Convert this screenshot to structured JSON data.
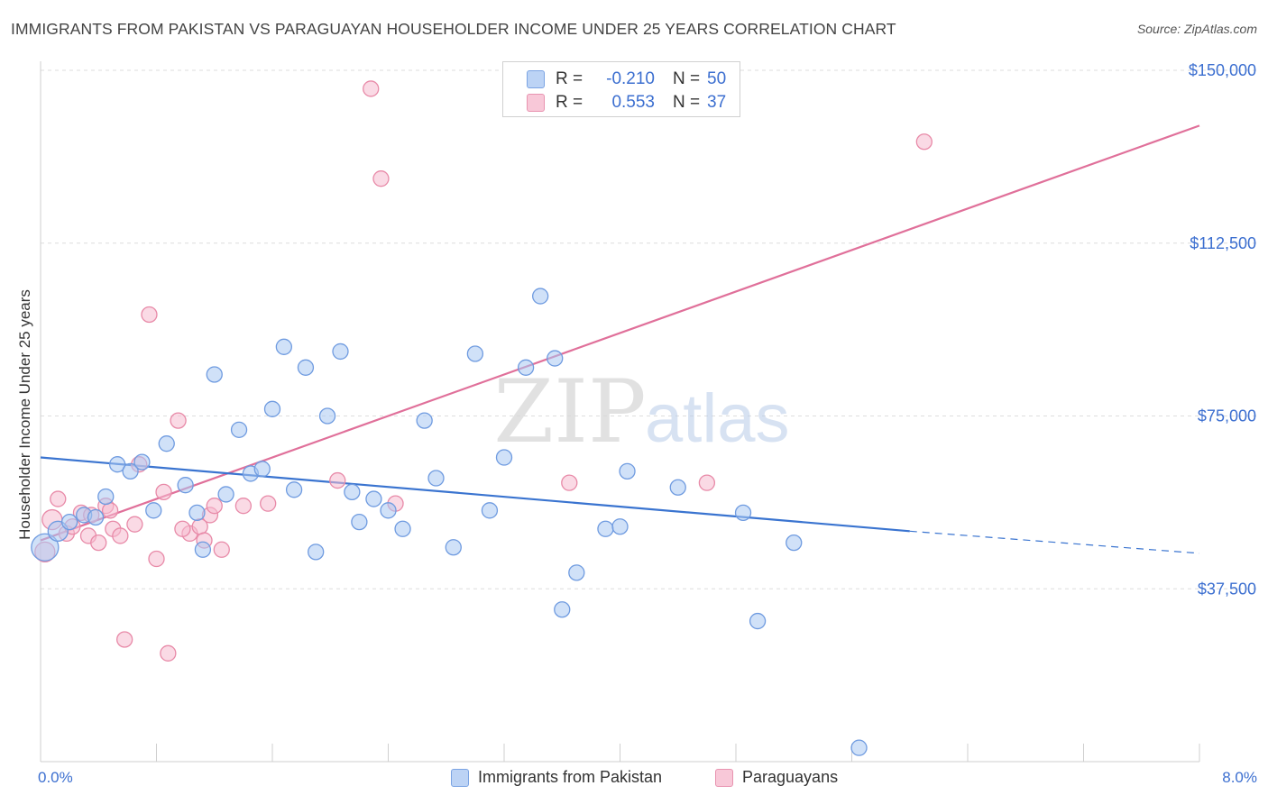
{
  "title": "IMMIGRANTS FROM PAKISTAN VS PARAGUAYAN HOUSEHOLDER INCOME UNDER 25 YEARS CORRELATION CHART",
  "source": "Source: ZipAtlas.com",
  "watermark": {
    "zip": "ZIP",
    "atlas": "atlas"
  },
  "legend": [
    {
      "r_label": "R =",
      "r_value": "-0.210",
      "n_label": "N =",
      "n_value": "50"
    },
    {
      "r_label": "R =",
      "r_value": "0.553",
      "n_label": "N =",
      "n_value": "37"
    }
  ],
  "chart_data": {
    "type": "scatter",
    "xlabel": "",
    "ylabel": "Householder Income Under 25 years",
    "xlim": [
      0,
      8
    ],
    "ylim": [
      0,
      157500
    ],
    "x_tick_labels": [
      "0.0%",
      "8.0%"
    ],
    "y_ticks": [
      37500,
      75000,
      112500,
      150000
    ],
    "y_tick_labels": [
      "$37,500",
      "$75,000",
      "$112,500",
      "$150,000"
    ],
    "grid": true,
    "legend_position": "bottom-center",
    "colors": {
      "pakistan_fill": "#aac8f2",
      "pakistan_stroke": "#6f9be0",
      "pakistan_line": "#3a74d0",
      "paraguay_fill": "#f6bcd0",
      "paraguay_stroke": "#e88aa8",
      "paraguay_line": "#e0709a",
      "tick_text": "#3c6fd0",
      "grid": "#dddddd"
    },
    "series": [
      {
        "name": "Immigrants from Pakistan",
        "trend": {
          "x": [
            0.0,
            6.0
          ],
          "y": [
            66000,
            50000
          ],
          "dashed_x": [
            6.0,
            8.0
          ],
          "dashed_y": [
            50000,
            45200
          ]
        },
        "points": [
          {
            "x": 0.03,
            "y": 46500,
            "s": 3
          },
          {
            "x": 0.12,
            "y": 50000,
            "s": 2
          },
          {
            "x": 0.2,
            "y": 52000,
            "s": 1
          },
          {
            "x": 0.3,
            "y": 53500,
            "s": 1
          },
          {
            "x": 0.38,
            "y": 53000,
            "s": 1
          },
          {
            "x": 0.45,
            "y": 57500,
            "s": 1
          },
          {
            "x": 0.53,
            "y": 64500,
            "s": 1
          },
          {
            "x": 0.62,
            "y": 63000,
            "s": 1
          },
          {
            "x": 0.7,
            "y": 65000,
            "s": 1
          },
          {
            "x": 0.78,
            "y": 54500,
            "s": 1
          },
          {
            "x": 0.87,
            "y": 69000,
            "s": 1
          },
          {
            "x": 1.0,
            "y": 60000,
            "s": 1
          },
          {
            "x": 1.08,
            "y": 54000,
            "s": 1
          },
          {
            "x": 1.12,
            "y": 46000,
            "s": 1
          },
          {
            "x": 1.2,
            "y": 84000,
            "s": 1
          },
          {
            "x": 1.28,
            "y": 58000,
            "s": 1
          },
          {
            "x": 1.37,
            "y": 72000,
            "s": 1
          },
          {
            "x": 1.45,
            "y": 62500,
            "s": 1
          },
          {
            "x": 1.53,
            "y": 63500,
            "s": 1
          },
          {
            "x": 1.6,
            "y": 76500,
            "s": 1
          },
          {
            "x": 1.68,
            "y": 90000,
            "s": 1
          },
          {
            "x": 1.75,
            "y": 59000,
            "s": 1
          },
          {
            "x": 1.83,
            "y": 85500,
            "s": 1
          },
          {
            "x": 1.9,
            "y": 45500,
            "s": 1
          },
          {
            "x": 1.98,
            "y": 75000,
            "s": 1
          },
          {
            "x": 2.07,
            "y": 89000,
            "s": 1
          },
          {
            "x": 2.15,
            "y": 58500,
            "s": 1
          },
          {
            "x": 2.2,
            "y": 52000,
            "s": 1
          },
          {
            "x": 2.3,
            "y": 57000,
            "s": 1
          },
          {
            "x": 2.4,
            "y": 54500,
            "s": 1
          },
          {
            "x": 2.5,
            "y": 50500,
            "s": 1
          },
          {
            "x": 2.65,
            "y": 74000,
            "s": 1
          },
          {
            "x": 2.73,
            "y": 61500,
            "s": 1
          },
          {
            "x": 2.85,
            "y": 46500,
            "s": 1
          },
          {
            "x": 3.0,
            "y": 88500,
            "s": 1
          },
          {
            "x": 3.1,
            "y": 54500,
            "s": 1
          },
          {
            "x": 3.2,
            "y": 66000,
            "s": 1
          },
          {
            "x": 3.35,
            "y": 85500,
            "s": 1
          },
          {
            "x": 3.45,
            "y": 101000,
            "s": 1
          },
          {
            "x": 3.55,
            "y": 87500,
            "s": 1
          },
          {
            "x": 3.6,
            "y": 33000,
            "s": 1
          },
          {
            "x": 3.7,
            "y": 41000,
            "s": 1
          },
          {
            "x": 3.9,
            "y": 50500,
            "s": 1
          },
          {
            "x": 4.0,
            "y": 51000,
            "s": 1
          },
          {
            "x": 4.05,
            "y": 63000,
            "s": 1
          },
          {
            "x": 4.4,
            "y": 59500,
            "s": 1
          },
          {
            "x": 4.85,
            "y": 54000,
            "s": 1
          },
          {
            "x": 4.95,
            "y": 30500,
            "s": 1
          },
          {
            "x": 5.2,
            "y": 47500,
            "s": 1
          },
          {
            "x": 5.65,
            "y": 3000,
            "s": 1
          }
        ]
      },
      {
        "name": "Paraguayans",
        "trend": {
          "x": [
            0.0,
            8.0
          ],
          "y": [
            48000,
            138000
          ]
        },
        "points": [
          {
            "x": 0.03,
            "y": 45500,
            "s": 2
          },
          {
            "x": 0.08,
            "y": 52500,
            "s": 2
          },
          {
            "x": 0.12,
            "y": 57000,
            "s": 1
          },
          {
            "x": 0.18,
            "y": 49500,
            "s": 1
          },
          {
            "x": 0.22,
            "y": 51000,
            "s": 1
          },
          {
            "x": 0.28,
            "y": 54000,
            "s": 1
          },
          {
            "x": 0.33,
            "y": 49000,
            "s": 1
          },
          {
            "x": 0.35,
            "y": 53500,
            "s": 1
          },
          {
            "x": 0.4,
            "y": 47500,
            "s": 1
          },
          {
            "x": 0.45,
            "y": 55500,
            "s": 1
          },
          {
            "x": 0.5,
            "y": 50500,
            "s": 1
          },
          {
            "x": 0.55,
            "y": 49000,
            "s": 1
          },
          {
            "x": 0.58,
            "y": 26500,
            "s": 1
          },
          {
            "x": 0.65,
            "y": 51500,
            "s": 1
          },
          {
            "x": 0.68,
            "y": 64500,
            "s": 1
          },
          {
            "x": 0.75,
            "y": 97000,
            "s": 1
          },
          {
            "x": 0.8,
            "y": 44000,
            "s": 1
          },
          {
            "x": 0.85,
            "y": 58500,
            "s": 1
          },
          {
            "x": 0.88,
            "y": 23500,
            "s": 1
          },
          {
            "x": 0.95,
            "y": 74000,
            "s": 1
          },
          {
            "x": 1.03,
            "y": 49500,
            "s": 1
          },
          {
            "x": 1.1,
            "y": 51000,
            "s": 1
          },
          {
            "x": 1.13,
            "y": 48000,
            "s": 1
          },
          {
            "x": 1.17,
            "y": 53500,
            "s": 1
          },
          {
            "x": 1.2,
            "y": 55500,
            "s": 1
          },
          {
            "x": 1.25,
            "y": 46000,
            "s": 1
          },
          {
            "x": 1.4,
            "y": 55500,
            "s": 1
          },
          {
            "x": 1.57,
            "y": 56000,
            "s": 1
          },
          {
            "x": 2.05,
            "y": 61000,
            "s": 1
          },
          {
            "x": 2.28,
            "y": 146000,
            "s": 1
          },
          {
            "x": 2.35,
            "y": 126500,
            "s": 1
          },
          {
            "x": 2.45,
            "y": 56000,
            "s": 1
          },
          {
            "x": 3.65,
            "y": 60500,
            "s": 1
          },
          {
            "x": 4.6,
            "y": 60500,
            "s": 1
          },
          {
            "x": 6.1,
            "y": 134500,
            "s": 1
          },
          {
            "x": 0.98,
            "y": 50500,
            "s": 1
          },
          {
            "x": 0.48,
            "y": 54500,
            "s": 1
          }
        ]
      }
    ]
  }
}
